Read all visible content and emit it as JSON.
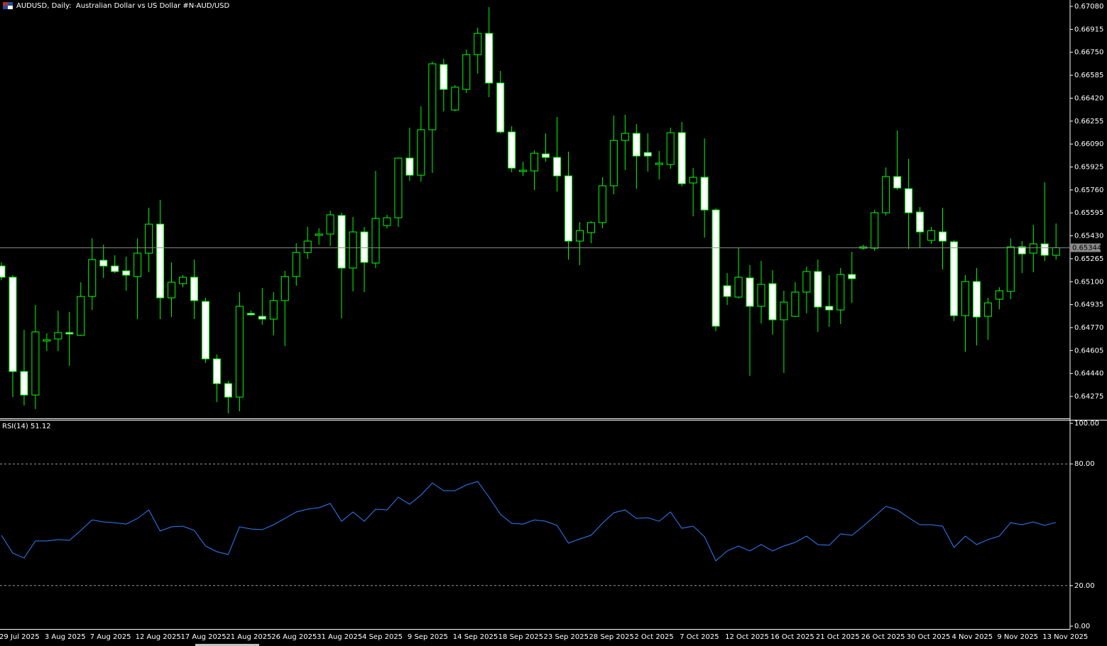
{
  "chart_data": [
    {
      "type": "candlestick",
      "title": "AUDUSD, Daily:  Australian Dollar vs US Dollar #N-AUD/USD",
      "categories": [
        "29 Jul 2025",
        null,
        null,
        null,
        "3 Aug 2025",
        null,
        null,
        null,
        "7 Aug 2025",
        null,
        null,
        null,
        "12 Aug 2025",
        null,
        null,
        null,
        "17 Aug 2025",
        null,
        null,
        null,
        "21 Aug 2025",
        null,
        null,
        null,
        "26 Aug 2025",
        null,
        null,
        null,
        "31 Aug 2025",
        null,
        null,
        null,
        "4 Sep 2025",
        null,
        null,
        null,
        "9 Sep 2025",
        null,
        null,
        null,
        "14 Sep 2025",
        null,
        null,
        null,
        "18 Sep 2025",
        null,
        null,
        null,
        "23 Sep 2025",
        null,
        null,
        null,
        "28 Sep 2025",
        null,
        null,
        null,
        "2 Oct 2025",
        null,
        null,
        null,
        "7 Oct 2025",
        null,
        null,
        null,
        "12 Oct 2025",
        null,
        null,
        null,
        "16 Oct 2025",
        null,
        null,
        null,
        "21 Oct 2025",
        null,
        null,
        null,
        "26 Oct 2025",
        null,
        null,
        null,
        "30 Oct 2025",
        null,
        null,
        null,
        "4 Nov 2025",
        null,
        null,
        null,
        "9 Nov 2025",
        null,
        null,
        null,
        "13 Nov 2025",
        null
      ],
      "open": [
        0.65213,
        0.65132,
        0.64454,
        0.64285,
        0.64673,
        0.64688,
        0.64734,
        0.64714,
        0.64994,
        0.65254,
        0.65213,
        0.65178,
        0.65137,
        0.65305,
        0.65514,
        0.64984,
        0.65086,
        0.65132,
        0.64958,
        0.64545,
        0.64367,
        0.6427,
        0.64872,
        0.64851,
        0.64831,
        0.64964,
        0.65137,
        0.6531,
        0.65433,
        0.65443,
        0.65576,
        0.65198,
        0.65458,
        0.65234,
        0.65504,
        0.6556,
        0.65989,
        0.65866,
        0.66193,
        0.66662,
        0.66335,
        0.66483,
        0.66733,
        0.66886,
        0.66529,
        0.66177,
        0.65892,
        0.65897,
        0.66019,
        0.65994,
        0.65861,
        0.65392,
        0.65453,
        0.65525,
        0.6579,
        0.66116,
        0.66167,
        0.66029,
        0.65943,
        0.65943,
        0.66172,
        0.6581,
        0.65851,
        0.65616,
        0.65071,
        0.64989,
        0.65127,
        0.64923,
        0.65086,
        0.64826,
        0.64851,
        0.65025,
        0.65173,
        0.64923,
        0.64897,
        0.65152,
        0.65341,
        0.65341,
        0.65596,
        0.65856,
        0.65769,
        0.65601,
        0.65397,
        0.65458,
        0.65387,
        0.64856,
        0.65101,
        0.64851,
        0.64974,
        0.6503,
        0.65351,
        0.65305,
        0.65372,
        0.6529
      ],
      "high": [
        0.65239,
        0.65147,
        0.64754,
        0.64933,
        0.64729,
        0.64892,
        0.64882,
        0.65096,
        0.65412,
        0.65366,
        0.6529,
        0.6528,
        0.65412,
        0.65632,
        0.65688,
        0.65239,
        0.65147,
        0.65259,
        0.64984,
        0.64576,
        0.64387,
        0.65025,
        0.64892,
        0.65055,
        0.65025,
        0.65178,
        0.65377,
        0.65494,
        0.65484,
        0.65611,
        0.65596,
        0.65565,
        0.65494,
        0.65897,
        0.65581,
        0.65994,
        0.66208,
        0.66361,
        0.66682,
        0.66703,
        0.66514,
        0.66769,
        0.66927,
        0.67075,
        0.66616,
        0.66218,
        0.65963,
        0.66045,
        0.66167,
        0.66284,
        0.66035,
        0.6553,
        0.65535,
        0.65851,
        0.66295,
        0.663,
        0.66233,
        0.66167,
        0.6604,
        0.66208,
        0.66249,
        0.65917,
        0.66131,
        0.65627,
        0.65162,
        0.65341,
        0.65219,
        0.65249,
        0.65183,
        0.65035,
        0.65096,
        0.65208,
        0.65259,
        0.65147,
        0.65198,
        0.65315,
        0.65366,
        0.65616,
        0.65922,
        0.66188,
        0.65984,
        0.65637,
        0.65494,
        0.65632,
        0.65397,
        0.65147,
        0.65198,
        0.64984,
        0.6506,
        0.65412,
        0.65392,
        0.65509,
        0.65815,
        0.65519
      ],
      "low": [
        0.65111,
        0.6427,
        0.64209,
        0.64183,
        0.64601,
        0.64601,
        0.64494,
        0.64709,
        0.64897,
        0.65127,
        0.65162,
        0.65035,
        0.64831,
        0.65168,
        0.64831,
        0.64846,
        0.6506,
        0.64831,
        0.64515,
        0.64234,
        0.64153,
        0.64168,
        0.64856,
        0.6479,
        0.64714,
        0.64637,
        0.65071,
        0.65264,
        0.65366,
        0.65356,
        0.64836,
        0.6503,
        0.65025,
        0.65198,
        0.65484,
        0.65494,
        0.65825,
        0.6582,
        0.65882,
        0.66325,
        0.66325,
        0.66458,
        0.66596,
        0.66427,
        0.66167,
        0.65887,
        0.65861,
        0.65759,
        0.65963,
        0.65749,
        0.65259,
        0.65219,
        0.65377,
        0.65484,
        0.65729,
        0.65902,
        0.65769,
        0.65892,
        0.65836,
        0.65912,
        0.65785,
        0.6557,
        0.65417,
        0.64744,
        0.64933,
        0.64979,
        0.64423,
        0.648,
        0.64719,
        0.64443,
        0.64846,
        0.64872,
        0.64739,
        0.64775,
        0.64795,
        0.64948,
        0.65331,
        0.65321,
        0.65576,
        0.65759,
        0.65336,
        0.65341,
        0.65372,
        0.65188,
        0.64816,
        0.64596,
        0.64642,
        0.64683,
        0.64902,
        0.64974,
        0.65162,
        0.65168,
        0.65249,
        0.65259
      ],
      "close": [
        0.65132,
        0.64454,
        0.64285,
        0.64739,
        0.64683,
        0.64734,
        0.64724,
        0.64994,
        0.65259,
        0.65213,
        0.65173,
        0.65147,
        0.65305,
        0.65514,
        0.64984,
        0.65096,
        0.65132,
        0.64964,
        0.64545,
        0.64367,
        0.6427,
        0.64923,
        0.64862,
        0.64831,
        0.64964,
        0.65137,
        0.6531,
        0.65392,
        0.65443,
        0.65581,
        0.65198,
        0.65458,
        0.65239,
        0.65555,
        0.6556,
        0.65989,
        0.65866,
        0.66193,
        0.66667,
        0.66483,
        0.66499,
        0.66733,
        0.66886,
        0.66529,
        0.66177,
        0.65917,
        0.65902,
        0.66024,
        0.65994,
        0.65861,
        0.65392,
        0.65468,
        0.65525,
        0.6579,
        0.66116,
        0.66167,
        0.66004,
        0.66004,
        0.65953,
        0.66172,
        0.65805,
        0.65851,
        0.65616,
        0.6478,
        0.64994,
        0.65132,
        0.64923,
        0.65081,
        0.64826,
        0.64953,
        0.65025,
        0.65173,
        0.64918,
        0.64897,
        0.65152,
        0.65122,
        0.65351,
        0.65596,
        0.65856,
        0.65774,
        0.65596,
        0.65458,
        0.65468,
        0.65392,
        0.64856,
        0.65101,
        0.64846,
        0.64948,
        0.65035,
        0.65351,
        0.653,
        0.65372,
        0.6529,
        0.65344
      ],
      "up_color": "#00ff00",
      "down_color": "#ffffff",
      "current_price": 0.65344,
      "ylim": [
        0.64117,
        0.67126
      ],
      "yticks": [
        {
          "value": 0.6708,
          "label": "0.67080"
        },
        0.66915,
        {
          "value": 0.6675,
          "label": "0.66750"
        },
        0.66585,
        {
          "value": 0.6642,
          "label": "0.66420"
        },
        0.66255,
        {
          "value": 0.6609,
          "label": "0.66090"
        },
        0.65925,
        {
          "value": 0.6576,
          "label": "0.65760"
        },
        0.65595,
        {
          "value": 0.6543,
          "label": "0.65430"
        },
        0.65265,
        {
          "value": 0.651,
          "label": "0.65100"
        },
        0.64935,
        {
          "value": 0.6477,
          "label": "0.64770"
        },
        0.64605,
        {
          "value": 0.6444,
          "label": "0.64440"
        },
        0.64275
      ]
    },
    {
      "type": "line",
      "title": "RSI(14) 51.12",
      "values": [
        44.8,
        36.0,
        33.6,
        42.0,
        42.0,
        42.7,
        42.3,
        47.2,
        52.4,
        51.4,
        51.0,
        50.3,
        53.1,
        57.3,
        46.9,
        49.0,
        49.3,
        47.2,
        39.5,
        36.7,
        35.3,
        49.0,
        47.9,
        47.6,
        50.0,
        53.1,
        56.3,
        57.7,
        58.4,
        60.5,
        51.7,
        56.3,
        51.7,
        57.7,
        57.3,
        63.6,
        60.1,
        64.7,
        70.6,
        66.8,
        66.8,
        69.6,
        71.3,
        63.6,
        55.2,
        50.7,
        50.3,
        52.4,
        51.7,
        49.7,
        40.9,
        43.0,
        44.8,
        50.7,
        55.9,
        57.3,
        53.1,
        53.5,
        51.7,
        56.3,
        48.3,
        49.3,
        44.1,
        32.2,
        37.1,
        39.5,
        37.1,
        40.2,
        37.1,
        39.5,
        41.3,
        44.4,
        40.2,
        39.9,
        45.5,
        44.8,
        49.3,
        54.2,
        59.1,
        57.3,
        53.5,
        50.0,
        50.0,
        49.3,
        38.8,
        44.4,
        40.2,
        42.7,
        44.4,
        51.0,
        50.0,
        51.4,
        49.7,
        51.12
      ],
      "color": "#2f7fff",
      "levels": [
        80,
        20
      ],
      "ylim": [
        0,
        100
      ],
      "yticks": [
        {
          "value": 100,
          "label": "100.00"
        },
        {
          "value": 80,
          "label": "80.00"
        },
        {
          "value": 20,
          "label": "20.00"
        },
        {
          "value": 0,
          "label": "0.00"
        }
      ]
    }
  ]
}
